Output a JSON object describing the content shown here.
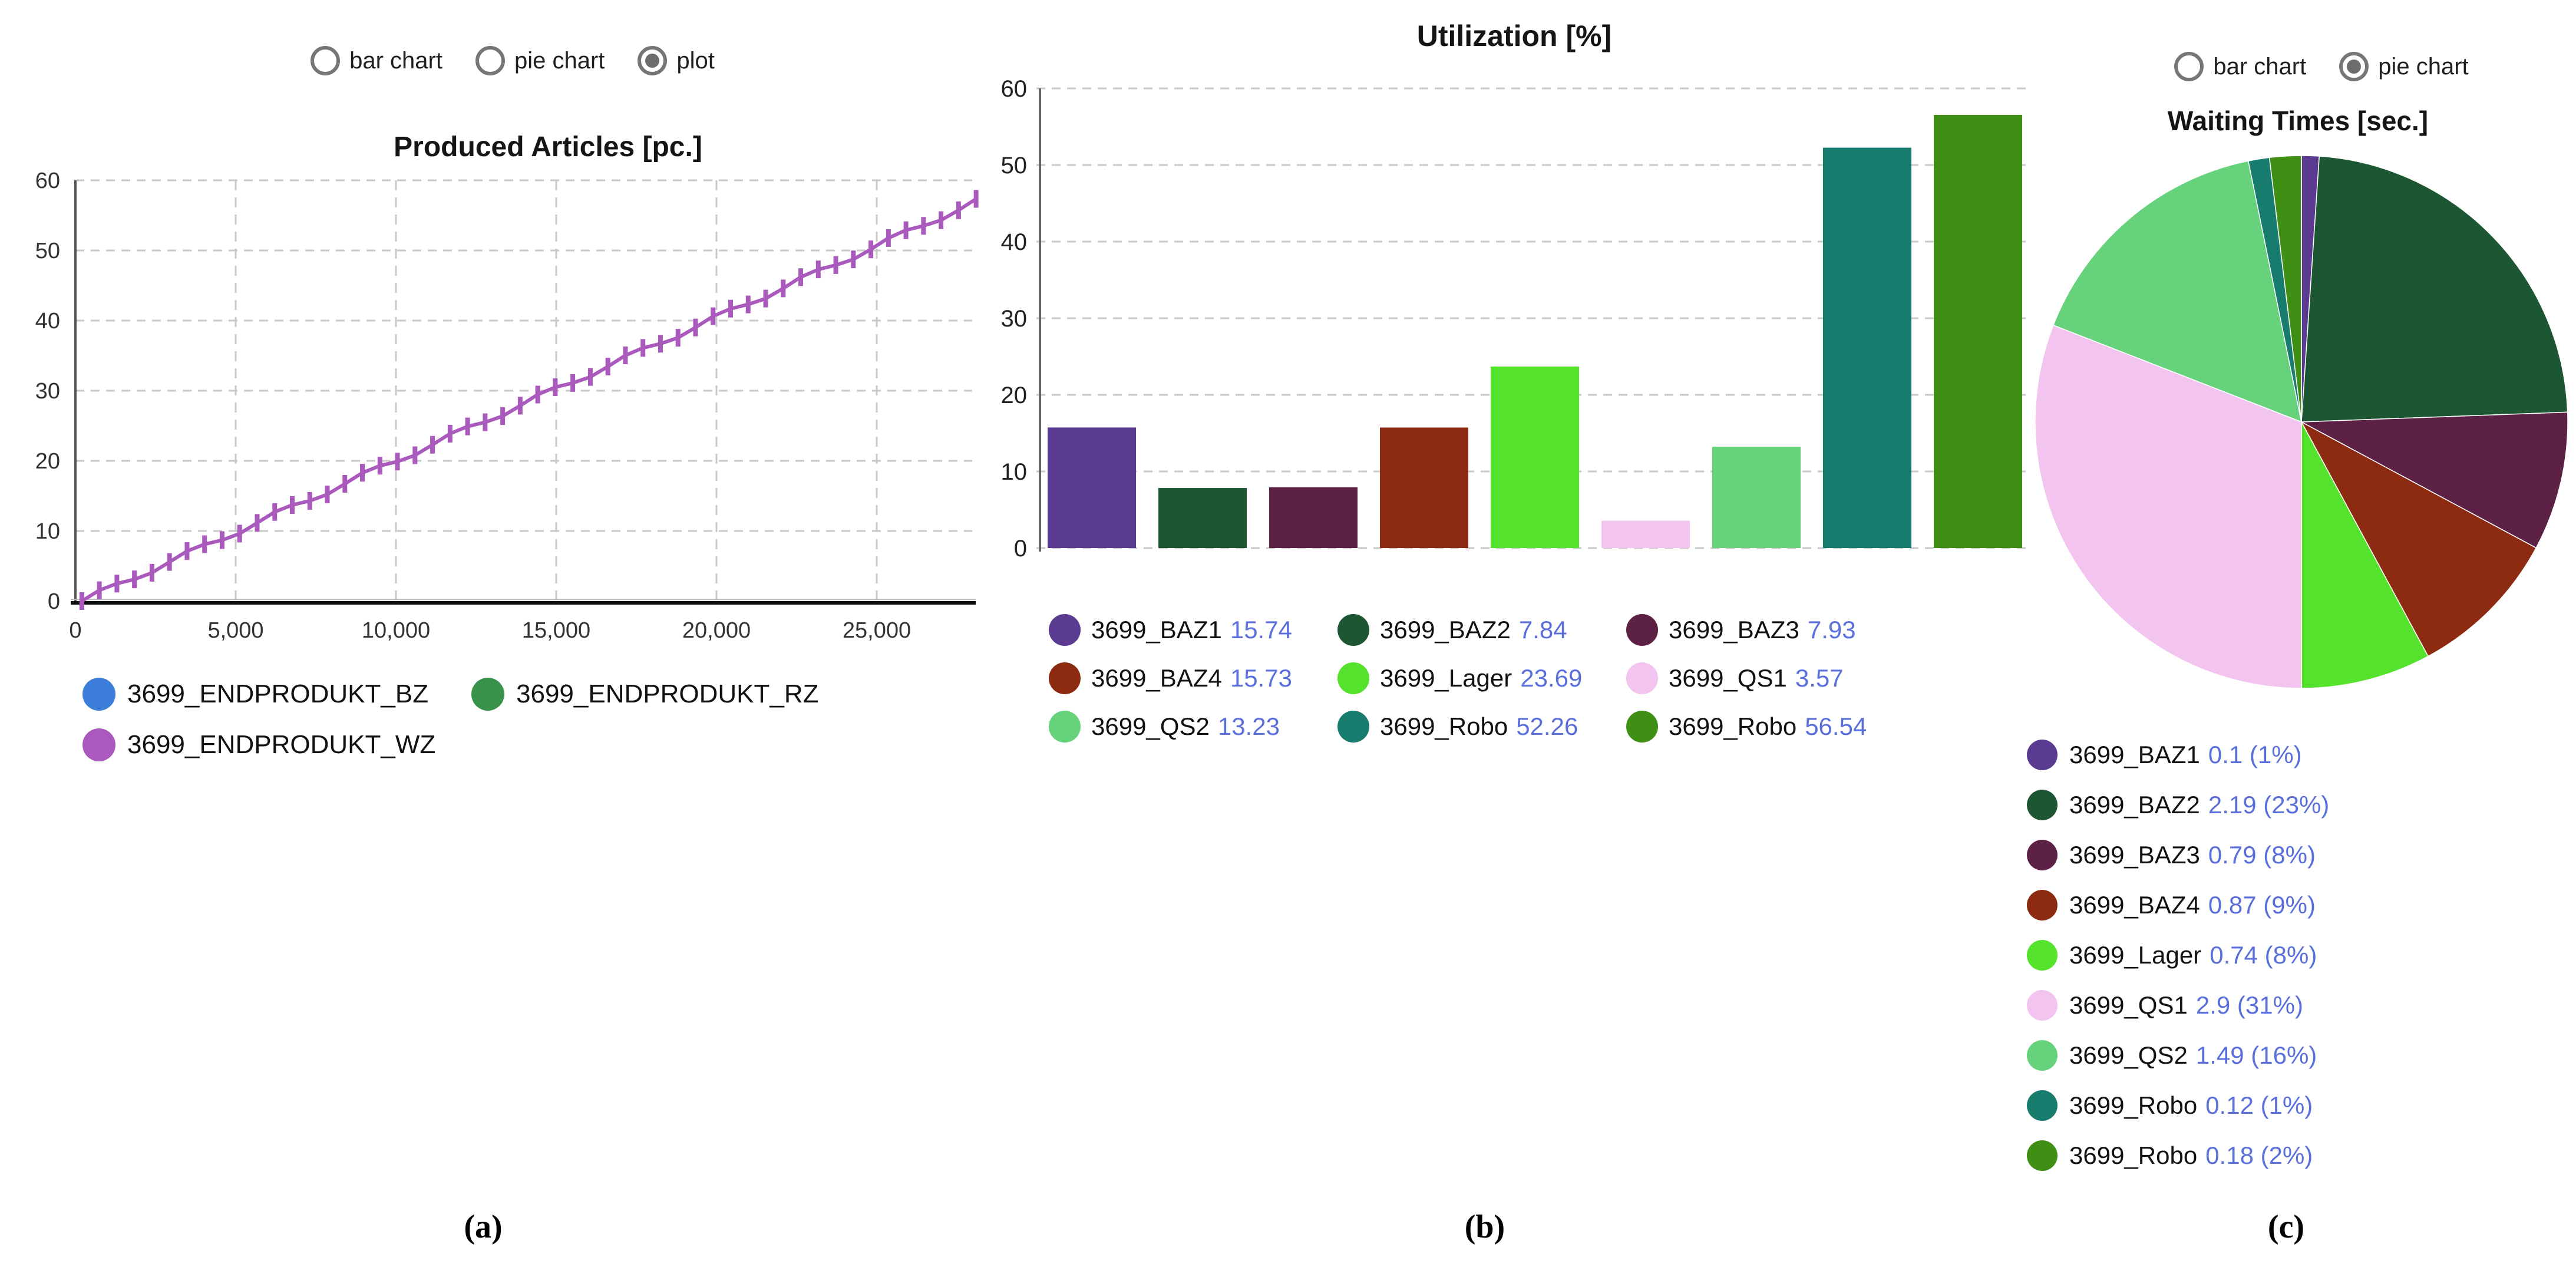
{
  "captions": {
    "a": "(a)",
    "b": "(b)",
    "c": "(c)"
  },
  "radio_groups": {
    "left": {
      "options": [
        {
          "label": "bar chart",
          "selected": false
        },
        {
          "label": "pie chart",
          "selected": false
        },
        {
          "label": "plot",
          "selected": true
        }
      ]
    },
    "right": {
      "options": [
        {
          "label": "bar chart",
          "selected": false
        },
        {
          "label": "pie chart",
          "selected": true
        }
      ]
    }
  },
  "styles": {
    "legend_value_color": "#5a6fdb",
    "gridline_color": "#c9c9c9",
    "axis_color": "#666666",
    "x_axis_color": "#111111"
  },
  "chart_data": [
    {
      "id": "produced_articles",
      "type": "line",
      "title": "Produced Articles [pc.]",
      "xlabel": "",
      "ylabel": "",
      "xlim": [
        0,
        28200
      ],
      "ylim": [
        0,
        60
      ],
      "grid": true,
      "legend_position": "bottom",
      "x_ticks": [
        {
          "value": 0,
          "label": "0"
        },
        {
          "value": 5000,
          "label": "5,000"
        },
        {
          "value": 10000,
          "label": "10,000"
        },
        {
          "value": 15000,
          "label": "15,000"
        },
        {
          "value": 20000,
          "label": "20,000"
        },
        {
          "value": 25000,
          "label": "25,000"
        }
      ],
      "y_ticks": [
        0,
        10,
        20,
        30,
        40,
        50,
        60
      ],
      "series": [
        {
          "name": "3699_ENDPRODUKT_BZ",
          "color": "#3d7edb",
          "line_visible": false
        },
        {
          "name": "3699_ENDPRODUKT_RZ",
          "color": "#38924a",
          "line_visible": false
        },
        {
          "name": "3699_ENDPRODUKT_WZ",
          "color": "#a95abc",
          "line_visible": true,
          "marker": "vertical-tick",
          "approx_trend": {
            "x_start": 200,
            "y_start": 0,
            "x_end": 28100,
            "y_end": 57
          }
        }
      ]
    },
    {
      "id": "utilization",
      "type": "bar",
      "title": "Utilization [%]",
      "xlabel": "",
      "ylabel": "",
      "ylim": [
        0,
        60
      ],
      "grid": true,
      "y_ticks": [
        0,
        10,
        20,
        30,
        40,
        50,
        60
      ],
      "categories": [
        "3699_BAZ1",
        "3699_BAZ2",
        "3699_BAZ3",
        "3699_BAZ4",
        "3699_Lager",
        "3699_QS1",
        "3699_QS2",
        "3699_Robo",
        "3699_Robo"
      ],
      "values": [
        15.74,
        7.84,
        7.93,
        15.73,
        23.69,
        3.57,
        13.23,
        52.26,
        56.54
      ],
      "value_labels": [
        "15.74",
        "7.84",
        "7.93",
        "15.73",
        "23.69",
        "3.57",
        "13.23",
        "52.26",
        "56.54"
      ],
      "colors": [
        "#5b3a91",
        "#1d5632",
        "#5c2145",
        "#8c2b12",
        "#55e22c",
        "#f2c4ef",
        "#66d27c",
        "#177b6e",
        "#3f8f14"
      ]
    },
    {
      "id": "waiting_times",
      "type": "pie",
      "title": "Waiting Times [sec.]",
      "labels": [
        "3699_BAZ1",
        "3699_BAZ2",
        "3699_BAZ3",
        "3699_BAZ4",
        "3699_Lager",
        "3699_QS1",
        "3699_QS2",
        "3699_Robo",
        "3699_Robo"
      ],
      "values": [
        0.1,
        2.19,
        0.79,
        0.87,
        0.74,
        2.9,
        1.49,
        0.12,
        0.18
      ],
      "percents": [
        "1%",
        "23%",
        "8%",
        "9%",
        "8%",
        "31%",
        "16%",
        "1%",
        "2%"
      ],
      "value_labels": [
        "0.1 (1%)",
        "2.19 (23%)",
        "0.79 (8%)",
        "0.87 (9%)",
        "0.74 (8%)",
        "2.9 (31%)",
        "1.49 (16%)",
        "0.12 (1%)",
        "0.18 (2%)"
      ],
      "colors": [
        "#5b3a91",
        "#1d5632",
        "#5c2145",
        "#8c2b12",
        "#55e22c",
        "#f2c4ef",
        "#66d27c",
        "#177b6e",
        "#3f8f14"
      ],
      "start_angle_deg": -90,
      "direction": "clockwise"
    }
  ]
}
